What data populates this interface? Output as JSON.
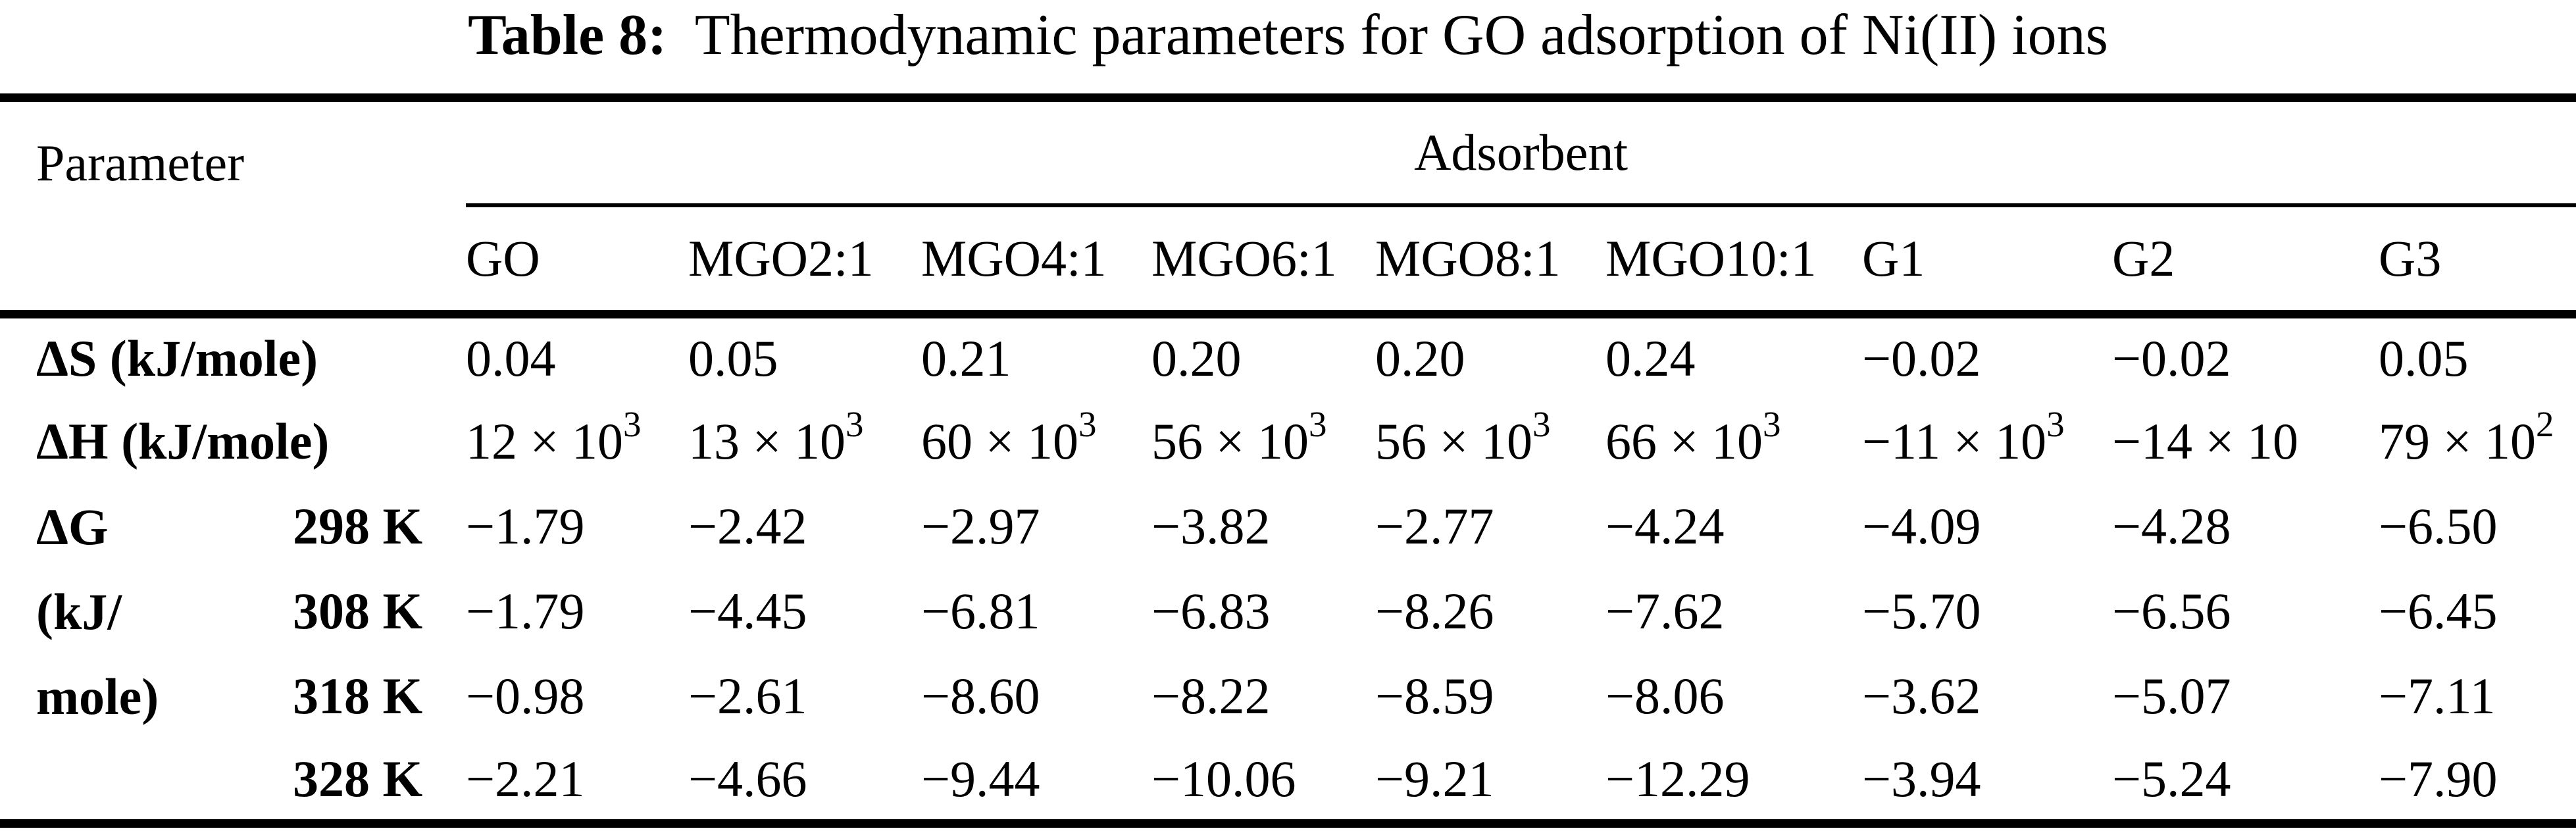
{
  "title": {
    "label": "Table 8:",
    "text": "  Thermodynamic parameters for GO adsorption of Ni(II) ions"
  },
  "table": {
    "header": {
      "parameter": "Parameter",
      "adsorbent": "Adsorbent",
      "columns": [
        "GO",
        "MGO2:1",
        "MGO4:1",
        "MGO6:1",
        "MGO8:1",
        "MGO10:1",
        "G1",
        "G2",
        "G3"
      ]
    },
    "rows": [
      {
        "key": "delta-s",
        "label": "ΔS (kJ/mole)",
        "values": [
          "0.04",
          "0.05",
          "0.21",
          "0.20",
          "0.20",
          "0.24",
          "−0.02",
          "−0.02",
          "0.05"
        ]
      },
      {
        "key": "delta-h",
        "label": "ΔH (kJ/mole)",
        "values": [
          "12 × 10^3",
          "13 × 10^3",
          "60 × 10^3",
          "56 × 10^3",
          "56 × 10^3",
          "66 × 10^3",
          "−11 × 10^3",
          "−14 × 10",
          "79 × 10^2"
        ]
      }
    ],
    "dg_group": {
      "key": "delta-g",
      "label_lines": [
        "ΔG",
        "(kJ/",
        "mole)"
      ],
      "sub_rows": [
        {
          "temp": "298 K",
          "values": [
            "−1.79",
            "−2.42",
            "−2.97",
            "−3.82",
            "−2.77",
            "−4.24",
            "−4.09",
            "−4.28",
            "−6.50"
          ]
        },
        {
          "temp": "308 K",
          "values": [
            "−1.79",
            "−4.45",
            "−6.81",
            "−6.83",
            "−8.26",
            "−7.62",
            "−5.70",
            "−6.56",
            "−6.45"
          ]
        },
        {
          "temp": "318 K",
          "values": [
            "−0.98",
            "−2.61",
            "−8.60",
            "−8.22",
            "−8.59",
            "−8.06",
            "−3.62",
            "−5.07",
            "−7.11"
          ]
        },
        {
          "temp": "328 K",
          "values": [
            "−2.21",
            "−4.66",
            "−9.44",
            "−10.06",
            "−9.21",
            "−12.29",
            "−3.94",
            "−5.24",
            "−7.90"
          ]
        }
      ]
    }
  }
}
